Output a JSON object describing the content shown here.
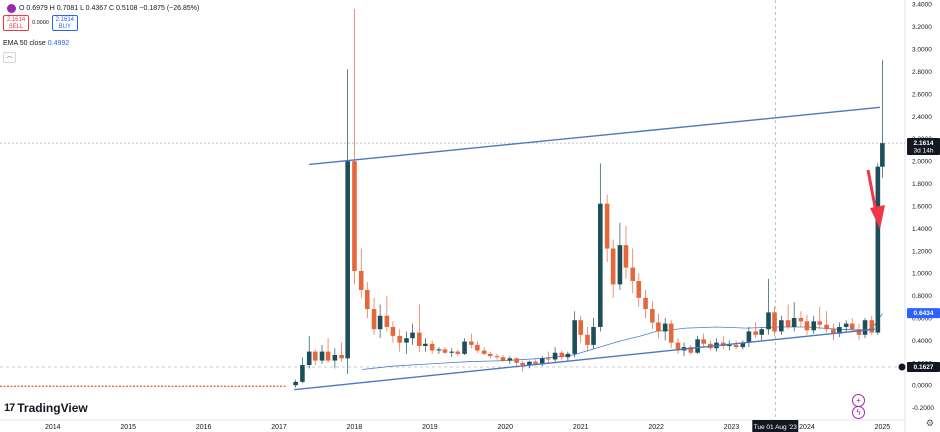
{
  "header": {
    "ohlc": "O 0.6979 H 0.7081 L 0.4367 C 0.5108 −0.1875 (−26.85%)",
    "ohlc_change": "",
    "sell_price": "2.1614",
    "sell_label": "SELL",
    "spread": "0.0000",
    "buy_price": "2.1614",
    "buy_label": "BUY",
    "ema_label": "EMA 50 close",
    "ema_value": "0.4992",
    "logo": "TradingView",
    "logo_mark": "17"
  },
  "colors": {
    "up": "#1c4f5a",
    "down": "#e4683c",
    "trendline": "#4a78c4",
    "ema": "#4a7fd4",
    "arrow": "#f23645",
    "price_badge": "#131722",
    "ema_badge": "#2962ff"
  },
  "icons": [
    "symbol-icon",
    "collapse-icon",
    "plus-circle-icon",
    "lightning-icon",
    "gear-icon"
  ],
  "chart_data": {
    "type": "candlestick",
    "y_ticks": [
      "3.4000",
      "3.2000",
      "3.0000",
      "2.8000",
      "2.6000",
      "2.4000",
      "2.2000",
      "2.0000",
      "1.8000",
      "1.6000",
      "1.4000",
      "1.2000",
      "1.0000",
      "0.8000",
      "0.6000",
      "0.4000",
      "0.2000",
      "0.0000",
      "-0.2000"
    ],
    "ylim": [
      -0.23,
      3.42
    ],
    "x_ticks": [
      "2014",
      "2015",
      "2016",
      "2017",
      "2018",
      "2019",
      "2020",
      "2021",
      "2022",
      "2023",
      "2024",
      "2025"
    ],
    "xlim": [
      2013.3,
      2025.3
    ],
    "last_price_label": "2.1614",
    "last_price_timer": "3d 14h",
    "ema_price_label": "0.6434",
    "crosshair_price_label": "0.1627",
    "crosshair_date_label": "Tue 01 Aug '23",
    "crosshair": {
      "x": 2023.58,
      "y": 0.1627
    },
    "trendlines": [
      {
        "from": [
          2017.4,
          1.97
        ],
        "to": [
          2024.97,
          2.48
        ]
      },
      {
        "from": [
          2017.2,
          -0.04
        ],
        "to": [
          2024.9,
          0.5
        ]
      }
    ],
    "ema": [
      [
        2018.1,
        0.14
      ],
      [
        2018.5,
        0.17
      ],
      [
        2019.0,
        0.19
      ],
      [
        2019.5,
        0.21
      ],
      [
        2020.0,
        0.22
      ],
      [
        2020.5,
        0.24
      ],
      [
        2020.9,
        0.27
      ],
      [
        2021.2,
        0.33
      ],
      [
        2021.5,
        0.39
      ],
      [
        2021.8,
        0.44
      ],
      [
        2022.0,
        0.48
      ],
      [
        2022.4,
        0.51
      ],
      [
        2022.8,
        0.52
      ],
      [
        2023.2,
        0.51
      ],
      [
        2023.6,
        0.52
      ],
      [
        2024.0,
        0.52
      ],
      [
        2024.4,
        0.5
      ],
      [
        2024.8,
        0.49
      ],
      [
        2024.9,
        0.54
      ],
      [
        2025.0,
        0.64
      ]
    ],
    "pre_2017": {
      "from": 2013.3,
      "to": 2017.1,
      "y": -0.01
    },
    "candles": [
      {
        "t": 2017.22,
        "o": 0.0,
        "h": 0.05,
        "l": -0.02,
        "c": 0.03
      },
      {
        "t": 2017.31,
        "o": 0.03,
        "h": 0.25,
        "l": 0.02,
        "c": 0.18
      },
      {
        "t": 2017.4,
        "o": 0.18,
        "h": 0.44,
        "l": 0.15,
        "c": 0.3
      },
      {
        "t": 2017.48,
        "o": 0.3,
        "h": 0.32,
        "l": 0.18,
        "c": 0.22
      },
      {
        "t": 2017.57,
        "o": 0.22,
        "h": 0.36,
        "l": 0.19,
        "c": 0.3
      },
      {
        "t": 2017.65,
        "o": 0.3,
        "h": 0.42,
        "l": 0.2,
        "c": 0.22
      },
      {
        "t": 2017.74,
        "o": 0.22,
        "h": 0.33,
        "l": 0.15,
        "c": 0.27
      },
      {
        "t": 2017.83,
        "o": 0.27,
        "h": 0.38,
        "l": 0.21,
        "c": 0.24
      },
      {
        "t": 2017.91,
        "o": 0.24,
        "h": 2.82,
        "l": 0.1,
        "c": 2.0
      },
      {
        "t": 2018.0,
        "o": 2.0,
        "h": 3.36,
        "l": 0.9,
        "c": 1.02
      },
      {
        "t": 2018.09,
        "o": 1.02,
        "h": 1.22,
        "l": 0.78,
        "c": 0.85
      },
      {
        "t": 2018.17,
        "o": 0.85,
        "h": 0.92,
        "l": 0.6,
        "c": 0.68
      },
      {
        "t": 2018.26,
        "o": 0.68,
        "h": 0.78,
        "l": 0.45,
        "c": 0.5
      },
      {
        "t": 2018.34,
        "o": 0.5,
        "h": 0.72,
        "l": 0.42,
        "c": 0.62
      },
      {
        "t": 2018.43,
        "o": 0.62,
        "h": 0.8,
        "l": 0.48,
        "c": 0.52
      },
      {
        "t": 2018.51,
        "o": 0.52,
        "h": 0.57,
        "l": 0.38,
        "c": 0.44
      },
      {
        "t": 2018.6,
        "o": 0.44,
        "h": 0.5,
        "l": 0.3,
        "c": 0.38
      },
      {
        "t": 2018.69,
        "o": 0.38,
        "h": 0.48,
        "l": 0.28,
        "c": 0.42
      },
      {
        "t": 2018.77,
        "o": 0.42,
        "h": 0.55,
        "l": 0.36,
        "c": 0.47
      },
      {
        "t": 2018.86,
        "o": 0.47,
        "h": 0.72,
        "l": 0.3,
        "c": 0.35
      },
      {
        "t": 2018.94,
        "o": 0.35,
        "h": 0.42,
        "l": 0.3,
        "c": 0.37
      },
      {
        "t": 2019.03,
        "o": 0.37,
        "h": 0.4,
        "l": 0.28,
        "c": 0.31
      },
      {
        "t": 2019.12,
        "o": 0.31,
        "h": 0.34,
        "l": 0.28,
        "c": 0.32
      },
      {
        "t": 2019.2,
        "o": 0.32,
        "h": 0.34,
        "l": 0.28,
        "c": 0.29
      },
      {
        "t": 2019.29,
        "o": 0.29,
        "h": 0.33,
        "l": 0.25,
        "c": 0.3
      },
      {
        "t": 2019.37,
        "o": 0.3,
        "h": 0.32,
        "l": 0.26,
        "c": 0.28
      },
      {
        "t": 2019.46,
        "o": 0.28,
        "h": 0.42,
        "l": 0.27,
        "c": 0.39
      },
      {
        "t": 2019.55,
        "o": 0.39,
        "h": 0.46,
        "l": 0.33,
        "c": 0.36
      },
      {
        "t": 2019.63,
        "o": 0.36,
        "h": 0.39,
        "l": 0.29,
        "c": 0.31
      },
      {
        "t": 2019.72,
        "o": 0.31,
        "h": 0.34,
        "l": 0.27,
        "c": 0.28
      },
      {
        "t": 2019.8,
        "o": 0.28,
        "h": 0.3,
        "l": 0.24,
        "c": 0.26
      },
      {
        "t": 2019.89,
        "o": 0.26,
        "h": 0.28,
        "l": 0.23,
        "c": 0.25
      },
      {
        "t": 2019.97,
        "o": 0.25,
        "h": 0.27,
        "l": 0.21,
        "c": 0.22
      },
      {
        "t": 2020.06,
        "o": 0.22,
        "h": 0.26,
        "l": 0.19,
        "c": 0.24
      },
      {
        "t": 2020.15,
        "o": 0.24,
        "h": 0.25,
        "l": 0.16,
        "c": 0.2
      },
      {
        "t": 2020.23,
        "o": 0.2,
        "h": 0.22,
        "l": 0.12,
        "c": 0.18
      },
      {
        "t": 2020.32,
        "o": 0.18,
        "h": 0.22,
        "l": 0.15,
        "c": 0.21
      },
      {
        "t": 2020.4,
        "o": 0.21,
        "h": 0.23,
        "l": 0.18,
        "c": 0.19
      },
      {
        "t": 2020.49,
        "o": 0.19,
        "h": 0.26,
        "l": 0.17,
        "c": 0.24
      },
      {
        "t": 2020.57,
        "o": 0.24,
        "h": 0.3,
        "l": 0.2,
        "c": 0.23
      },
      {
        "t": 2020.66,
        "o": 0.23,
        "h": 0.34,
        "l": 0.2,
        "c": 0.29
      },
      {
        "t": 2020.75,
        "o": 0.29,
        "h": 0.31,
        "l": 0.22,
        "c": 0.25
      },
      {
        "t": 2020.83,
        "o": 0.25,
        "h": 0.3,
        "l": 0.22,
        "c": 0.28
      },
      {
        "t": 2020.92,
        "o": 0.28,
        "h": 0.66,
        "l": 0.25,
        "c": 0.58
      },
      {
        "t": 2021.0,
        "o": 0.58,
        "h": 0.62,
        "l": 0.38,
        "c": 0.45
      },
      {
        "t": 2021.09,
        "o": 0.45,
        "h": 0.52,
        "l": 0.3,
        "c": 0.36
      },
      {
        "t": 2021.17,
        "o": 0.36,
        "h": 0.6,
        "l": 0.32,
        "c": 0.52
      },
      {
        "t": 2021.26,
        "o": 0.52,
        "h": 1.98,
        "l": 0.48,
        "c": 1.62
      },
      {
        "t": 2021.35,
        "o": 1.62,
        "h": 1.7,
        "l": 1.1,
        "c": 1.22
      },
      {
        "t": 2021.43,
        "o": 1.22,
        "h": 1.3,
        "l": 0.78,
        "c": 0.9
      },
      {
        "t": 2021.52,
        "o": 0.9,
        "h": 1.45,
        "l": 0.85,
        "c": 1.25
      },
      {
        "t": 2021.6,
        "o": 1.25,
        "h": 1.42,
        "l": 0.95,
        "c": 1.05
      },
      {
        "t": 2021.69,
        "o": 1.05,
        "h": 1.22,
        "l": 0.82,
        "c": 0.93
      },
      {
        "t": 2021.77,
        "o": 0.93,
        "h": 1.0,
        "l": 0.7,
        "c": 0.78
      },
      {
        "t": 2021.86,
        "o": 0.78,
        "h": 0.85,
        "l": 0.6,
        "c": 0.68
      },
      {
        "t": 2021.95,
        "o": 0.68,
        "h": 0.75,
        "l": 0.5,
        "c": 0.56
      },
      {
        "t": 2022.03,
        "o": 0.56,
        "h": 0.64,
        "l": 0.42,
        "c": 0.48
      },
      {
        "t": 2022.12,
        "o": 0.48,
        "h": 0.6,
        "l": 0.4,
        "c": 0.55
      },
      {
        "t": 2022.2,
        "o": 0.55,
        "h": 0.58,
        "l": 0.33,
        "c": 0.38
      },
      {
        "t": 2022.29,
        "o": 0.38,
        "h": 0.42,
        "l": 0.28,
        "c": 0.31
      },
      {
        "t": 2022.37,
        "o": 0.31,
        "h": 0.38,
        "l": 0.26,
        "c": 0.34
      },
      {
        "t": 2022.46,
        "o": 0.34,
        "h": 0.36,
        "l": 0.27,
        "c": 0.29
      },
      {
        "t": 2022.55,
        "o": 0.29,
        "h": 0.44,
        "l": 0.28,
        "c": 0.41
      },
      {
        "t": 2022.63,
        "o": 0.41,
        "h": 0.46,
        "l": 0.34,
        "c": 0.37
      },
      {
        "t": 2022.72,
        "o": 0.37,
        "h": 0.4,
        "l": 0.31,
        "c": 0.33
      },
      {
        "t": 2022.8,
        "o": 0.33,
        "h": 0.42,
        "l": 0.3,
        "c": 0.38
      },
      {
        "t": 2022.89,
        "o": 0.38,
        "h": 0.44,
        "l": 0.32,
        "c": 0.35
      },
      {
        "t": 2022.97,
        "o": 0.35,
        "h": 0.4,
        "l": 0.31,
        "c": 0.36
      },
      {
        "t": 2023.06,
        "o": 0.36,
        "h": 0.4,
        "l": 0.32,
        "c": 0.34
      },
      {
        "t": 2023.15,
        "o": 0.34,
        "h": 0.4,
        "l": 0.32,
        "c": 0.38
      },
      {
        "t": 2023.23,
        "o": 0.38,
        "h": 0.52,
        "l": 0.34,
        "c": 0.48
      },
      {
        "t": 2023.32,
        "o": 0.48,
        "h": 0.56,
        "l": 0.42,
        "c": 0.45
      },
      {
        "t": 2023.4,
        "o": 0.45,
        "h": 0.52,
        "l": 0.4,
        "c": 0.5
      },
      {
        "t": 2023.49,
        "o": 0.5,
        "h": 0.95,
        "l": 0.45,
        "c": 0.65
      },
      {
        "t": 2023.57,
        "o": 0.65,
        "h": 0.7,
        "l": 0.44,
        "c": 0.48
      },
      {
        "t": 2023.66,
        "o": 0.48,
        "h": 0.62,
        "l": 0.45,
        "c": 0.58
      },
      {
        "t": 2023.75,
        "o": 0.58,
        "h": 0.72,
        "l": 0.5,
        "c": 0.52
      },
      {
        "t": 2023.83,
        "o": 0.52,
        "h": 0.74,
        "l": 0.48,
        "c": 0.6
      },
      {
        "t": 2023.92,
        "o": 0.6,
        "h": 0.66,
        "l": 0.52,
        "c": 0.57
      },
      {
        "t": 2024.0,
        "o": 0.57,
        "h": 0.63,
        "l": 0.45,
        "c": 0.49
      },
      {
        "t": 2024.09,
        "o": 0.49,
        "h": 0.62,
        "l": 0.46,
        "c": 0.57
      },
      {
        "t": 2024.17,
        "o": 0.57,
        "h": 0.7,
        "l": 0.5,
        "c": 0.54
      },
      {
        "t": 2024.26,
        "o": 0.54,
        "h": 0.66,
        "l": 0.47,
        "c": 0.5
      },
      {
        "t": 2024.35,
        "o": 0.5,
        "h": 0.55,
        "l": 0.4,
        "c": 0.46
      },
      {
        "t": 2024.43,
        "o": 0.46,
        "h": 0.56,
        "l": 0.43,
        "c": 0.52
      },
      {
        "t": 2024.52,
        "o": 0.52,
        "h": 0.58,
        "l": 0.48,
        "c": 0.55
      },
      {
        "t": 2024.6,
        "o": 0.55,
        "h": 0.6,
        "l": 0.48,
        "c": 0.5
      },
      {
        "t": 2024.69,
        "o": 0.5,
        "h": 0.55,
        "l": 0.4,
        "c": 0.45
      },
      {
        "t": 2024.77,
        "o": 0.45,
        "h": 0.6,
        "l": 0.42,
        "c": 0.58
      },
      {
        "t": 2024.86,
        "o": 0.58,
        "h": 0.62,
        "l": 0.45,
        "c": 0.47
      },
      {
        "t": 2024.94,
        "o": 0.47,
        "h": 1.98,
        "l": 0.45,
        "c": 1.95
      },
      {
        "t": 2025.0,
        "o": 1.95,
        "h": 2.9,
        "l": 1.85,
        "c": 2.16
      }
    ]
  }
}
